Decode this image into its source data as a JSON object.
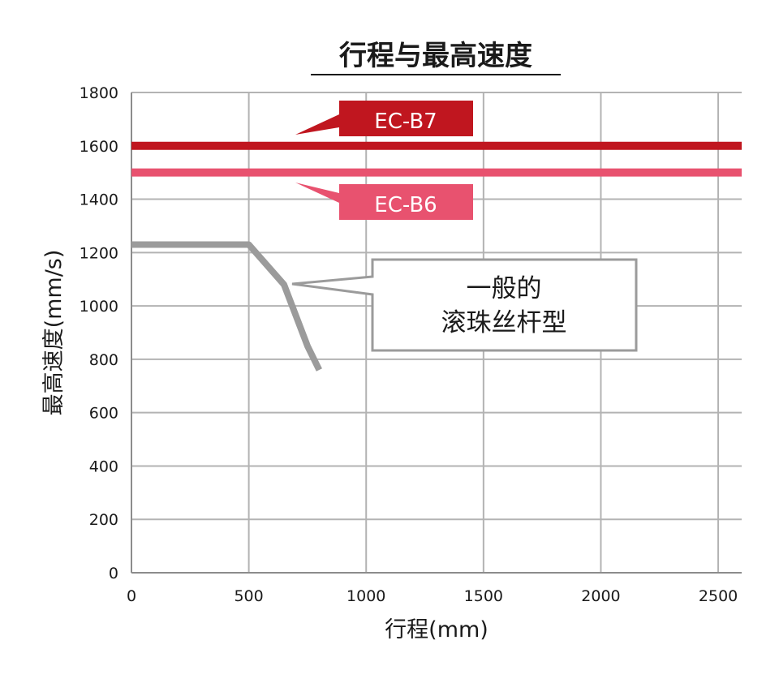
{
  "chart_data": {
    "type": "line",
    "title": "行程与最高速度",
    "xlabel": "行程(mm)",
    "ylabel": "最高速度(mm/s)",
    "xlim": [
      0,
      2600
    ],
    "ylim": [
      0,
      1800
    ],
    "xticks": [
      0,
      500,
      1000,
      1500,
      2000,
      2500
    ],
    "yticks": [
      0,
      200,
      400,
      600,
      800,
      1000,
      1200,
      1400,
      1600,
      1800
    ],
    "grid": true,
    "series": [
      {
        "name": "EC-B7",
        "color": "#c0161f",
        "x": [
          0,
          2600
        ],
        "y": [
          1600,
          1600
        ]
      },
      {
        "name": "EC-B6",
        "color": "#e8526f",
        "x": [
          0,
          2600
        ],
        "y": [
          1500,
          1500
        ]
      },
      {
        "name": "一般的 滚珠丝杆型",
        "label_lines": [
          "一般的",
          "滚珠丝杆型"
        ],
        "color": "#9b9b9b",
        "x": [
          0,
          500,
          650,
          750,
          800
        ],
        "y": [
          1230,
          1230,
          1080,
          850,
          760
        ]
      }
    ]
  }
}
